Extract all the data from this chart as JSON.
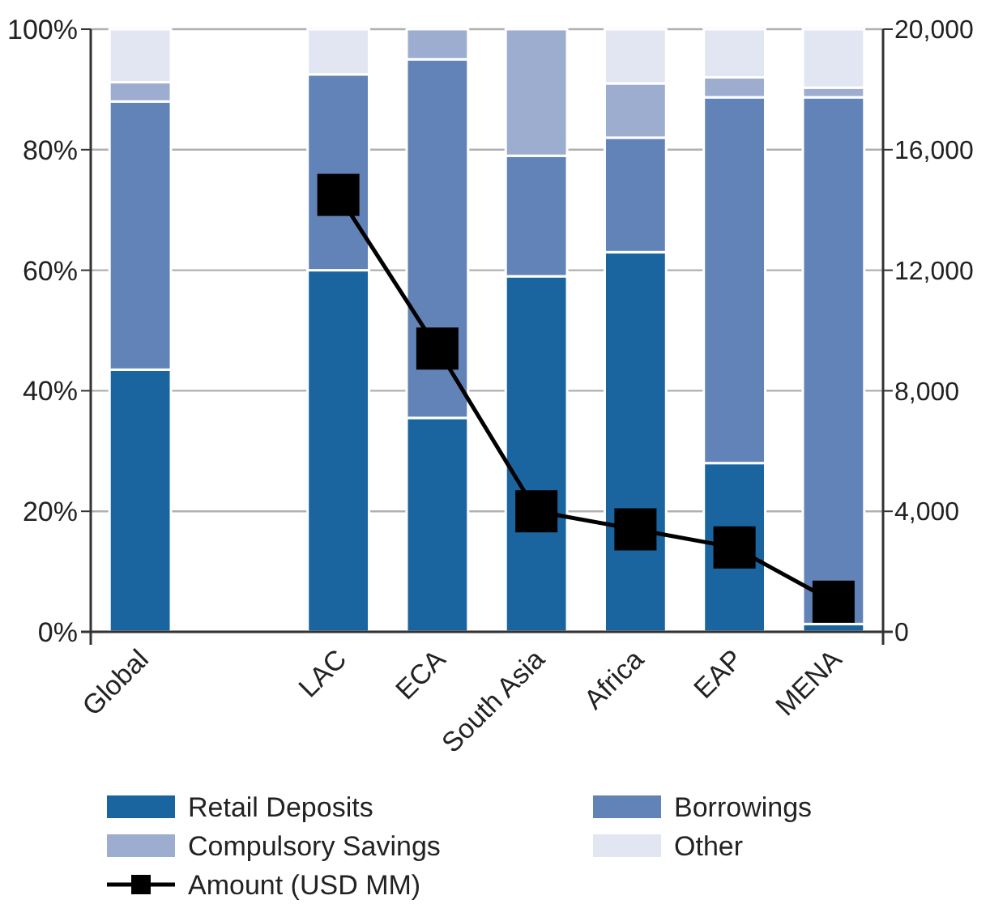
{
  "chart_data": {
    "type": "bar",
    "stacked": true,
    "categories": [
      "Global",
      null,
      "LAC",
      "ECA",
      "South Asia",
      "Africa",
      "EAP",
      "MENA"
    ],
    "series": [
      {
        "name": "Retail Deposits",
        "color": "#1a64a0",
        "values": [
          43.5,
          null,
          60,
          35.5,
          59,
          63,
          28,
          1.3
        ]
      },
      {
        "name": "Borrowings",
        "color": "#6283b7",
        "values": [
          44.5,
          null,
          32.5,
          59.5,
          20,
          19,
          60.7,
          87.4
        ]
      },
      {
        "name": "Compulsory Savings",
        "color": "#9dadcf",
        "values": [
          3.2,
          null,
          0,
          5,
          21,
          9,
          3.3,
          1.6
        ]
      },
      {
        "name": "Other",
        "color": "#e2e6f2",
        "values": [
          8.8,
          null,
          7.5,
          0,
          0,
          9,
          8,
          9.7
        ]
      },
      {
        "name": "Amount (USD MM)",
        "type": "line",
        "axis": "y2",
        "color": "#000000",
        "marker": "square",
        "values": [
          null,
          null,
          14500,
          9400,
          4000,
          3400,
          2800,
          1000
        ]
      }
    ],
    "ylim": [
      0,
      100
    ],
    "yticks": [
      {
        "value": 0,
        "label": "0%"
      },
      {
        "value": 20,
        "label": "20%"
      },
      {
        "value": 40,
        "label": "40%"
      },
      {
        "value": 60,
        "label": "60%"
      },
      {
        "value": 80,
        "label": "80%"
      },
      {
        "value": 100,
        "label": "100%"
      }
    ],
    "y2lim": [
      0,
      20000
    ],
    "y2ticks": [
      0,
      {
        "value": 4000,
        "label": "4,000"
      },
      {
        "value": 8000,
        "label": "8,000"
      },
      {
        "value": 12000,
        "label": "12,000"
      },
      {
        "value": 16000,
        "label": "16,000"
      },
      {
        "value": 20000,
        "label": "20,000"
      }
    ],
    "grid": "y",
    "legend": "bottom"
  }
}
